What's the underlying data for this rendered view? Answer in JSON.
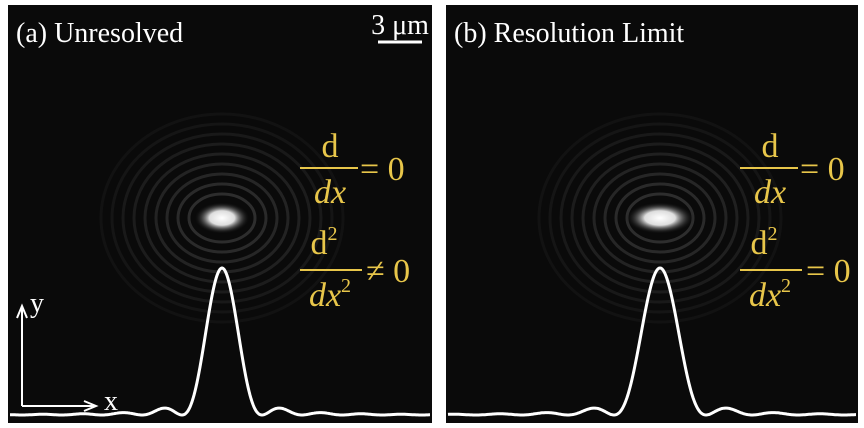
{
  "panels": [
    {
      "label": "(a) Unresolved",
      "scale_bar": "3 μm",
      "axes": {
        "y": "y",
        "x": "x"
      },
      "first_derivative": {
        "numerator": "d",
        "denominator": "dx",
        "relation": "= 0"
      },
      "second_derivative": {
        "numerator": "d",
        "exponent": "2",
        "denominator": "dx",
        "denominator_exponent": "2",
        "relation": "≠ 0"
      }
    },
    {
      "label": "(b) Resolution Limit",
      "first_derivative": {
        "numerator": "d",
        "denominator": "dx",
        "relation": "= 0"
      },
      "second_derivative": {
        "numerator": "d",
        "exponent": "2",
        "denominator": "dx",
        "denominator_exponent": "2",
        "relation": "= 0"
      }
    }
  ]
}
